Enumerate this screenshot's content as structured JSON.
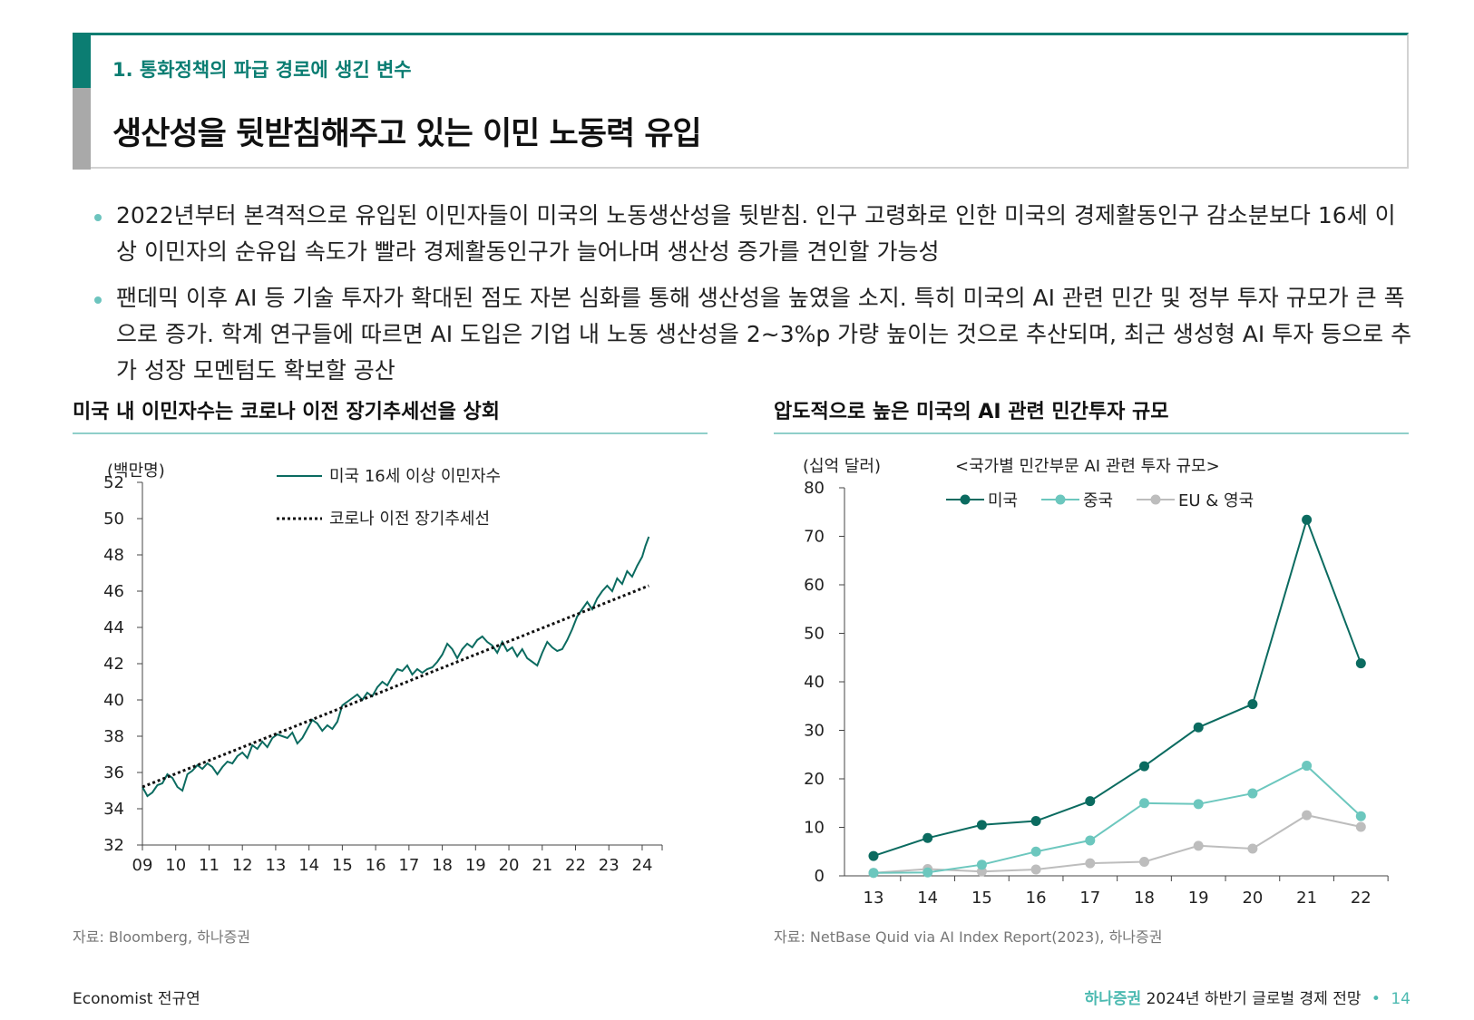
{
  "header": {
    "section": "1. 통화정책의 파급 경로에 생긴 변수",
    "title": "생산성을 뒷받침해주고 있는 이민 노동력 유입"
  },
  "bullets": [
    "2022년부터 본격적으로 유입된 이민자들이 미국의 노동생산성을 뒷받침. 인구 고령화로 인한 미국의 경제활동인구 감소분보다 16세 이상 이민자의 순유입 속도가 빨라 경제활동인구가 늘어나며 생산성 증가를 견인할 가능성",
    "팬데믹 이후 AI 등 기술 투자가 확대된 점도 자본 심화를 통해 생산성을 높였을 소지. 특히 미국의 AI 관련 민간 및 정부 투자 규모가 큰 폭으로 증가. 학계 연구들에 따르면 AI 도입은 기업 내 노동 생산성을 2~3%p 가량 높이는 것으로 추산되며, 최근 생성형 AI 투자 등으로 추가 성장 모멘텀도 확보할 공산"
  ],
  "colors": {
    "teal_dark": "#0b6b60",
    "teal_light": "#6cc7be",
    "gray": "#bdbdbd",
    "accent": "#0b7d72"
  },
  "chart_data": [
    {
      "type": "line",
      "title": "미국 내 이민자수는 코로나 이전 장기추세선을 상회",
      "unit_label": "(백만명)",
      "ylim": [
        32,
        52
      ],
      "yticks": [
        "32",
        "34",
        "36",
        "38",
        "40",
        "42",
        "44",
        "46",
        "48",
        "50",
        "52"
      ],
      "xlim": [
        2009,
        2024.6
      ],
      "xticks": [
        "09",
        "10",
        "11",
        "12",
        "13",
        "14",
        "15",
        "16",
        "17",
        "18",
        "19",
        "20",
        "21",
        "22",
        "23",
        "24"
      ],
      "series": [
        {
          "name": "미국 16세 이상 이민자수",
          "style": "solid",
          "points": [
            [
              2009.0,
              35.2
            ],
            [
              2009.15,
              34.7
            ],
            [
              2009.3,
              34.9
            ],
            [
              2009.45,
              35.3
            ],
            [
              2009.6,
              35.4
            ],
            [
              2009.75,
              35.9
            ],
            [
              2009.9,
              35.7
            ],
            [
              2010.05,
              35.2
            ],
            [
              2010.2,
              35.0
            ],
            [
              2010.35,
              35.9
            ],
            [
              2010.5,
              36.1
            ],
            [
              2010.65,
              36.4
            ],
            [
              2010.8,
              36.2
            ],
            [
              2010.95,
              36.5
            ],
            [
              2011.1,
              36.3
            ],
            [
              2011.25,
              35.9
            ],
            [
              2011.4,
              36.3
            ],
            [
              2011.55,
              36.6
            ],
            [
              2011.7,
              36.5
            ],
            [
              2011.85,
              36.9
            ],
            [
              2012.0,
              37.1
            ],
            [
              2012.15,
              36.8
            ],
            [
              2012.3,
              37.5
            ],
            [
              2012.45,
              37.3
            ],
            [
              2012.6,
              37.7
            ],
            [
              2012.75,
              37.4
            ],
            [
              2012.9,
              37.9
            ],
            [
              2013.05,
              38.1
            ],
            [
              2013.2,
              38.0
            ],
            [
              2013.35,
              37.9
            ],
            [
              2013.5,
              38.2
            ],
            [
              2013.65,
              37.6
            ],
            [
              2013.8,
              37.9
            ],
            [
              2013.95,
              38.4
            ],
            [
              2014.1,
              38.9
            ],
            [
              2014.25,
              38.7
            ],
            [
              2014.4,
              38.3
            ],
            [
              2014.55,
              38.6
            ],
            [
              2014.7,
              38.4
            ],
            [
              2014.85,
              38.8
            ],
            [
              2015.0,
              39.7
            ],
            [
              2015.15,
              39.9
            ],
            [
              2015.3,
              40.1
            ],
            [
              2015.45,
              40.3
            ],
            [
              2015.6,
              40.0
            ],
            [
              2015.75,
              40.4
            ],
            [
              2015.9,
              40.2
            ],
            [
              2016.05,
              40.7
            ],
            [
              2016.2,
              41.0
            ],
            [
              2016.35,
              40.8
            ],
            [
              2016.5,
              41.3
            ],
            [
              2016.65,
              41.7
            ],
            [
              2016.8,
              41.6
            ],
            [
              2016.95,
              41.9
            ],
            [
              2017.1,
              41.4
            ],
            [
              2017.25,
              41.7
            ],
            [
              2017.4,
              41.5
            ],
            [
              2017.55,
              41.7
            ],
            [
              2017.7,
              41.8
            ],
            [
              2017.85,
              42.1
            ],
            [
              2018.0,
              42.5
            ],
            [
              2018.15,
              43.1
            ],
            [
              2018.3,
              42.8
            ],
            [
              2018.45,
              42.3
            ],
            [
              2018.6,
              42.8
            ],
            [
              2018.75,
              43.1
            ],
            [
              2018.9,
              42.9
            ],
            [
              2019.05,
              43.3
            ],
            [
              2019.2,
              43.5
            ],
            [
              2019.35,
              43.2
            ],
            [
              2019.5,
              43.0
            ],
            [
              2019.65,
              42.6
            ],
            [
              2019.8,
              43.2
            ],
            [
              2019.95,
              42.7
            ],
            [
              2020.1,
              42.9
            ],
            [
              2020.25,
              42.4
            ],
            [
              2020.4,
              42.8
            ],
            [
              2020.55,
              42.3
            ],
            [
              2020.7,
              42.1
            ],
            [
              2020.85,
              41.9
            ],
            [
              2021.0,
              42.6
            ],
            [
              2021.15,
              43.2
            ],
            [
              2021.3,
              42.9
            ],
            [
              2021.45,
              42.7
            ],
            [
              2021.6,
              42.8
            ],
            [
              2021.75,
              43.3
            ],
            [
              2021.9,
              43.9
            ],
            [
              2022.05,
              44.6
            ],
            [
              2022.2,
              45.0
            ],
            [
              2022.35,
              45.4
            ],
            [
              2022.5,
              45.0
            ],
            [
              2022.65,
              45.6
            ],
            [
              2022.8,
              46.0
            ],
            [
              2022.95,
              46.3
            ],
            [
              2023.1,
              46.0
            ],
            [
              2023.25,
              46.7
            ],
            [
              2023.4,
              46.4
            ],
            [
              2023.55,
              47.1
            ],
            [
              2023.7,
              46.8
            ],
            [
              2023.85,
              47.4
            ],
            [
              2024.0,
              47.9
            ],
            [
              2024.1,
              48.5
            ],
            [
              2024.2,
              49.0
            ]
          ]
        },
        {
          "name": "코로나 이전 장기추세선",
          "style": "dotted",
          "points": [
            [
              2009.0,
              35.2
            ],
            [
              2024.2,
              46.3
            ]
          ]
        }
      ],
      "source": "자료: Bloomberg, 하나증권"
    },
    {
      "type": "line",
      "title": "압도적으로 높은 미국의 AI 관련 민간투자 규모",
      "unit_label": "(십억 달러)",
      "subtitle": "<국가별 민간부문 AI 관련 투자 규모>",
      "ylim": [
        0,
        80
      ],
      "yticks": [
        "0",
        "10",
        "20",
        "30",
        "40",
        "50",
        "60",
        "70",
        "80"
      ],
      "categories": [
        "13",
        "14",
        "15",
        "16",
        "17",
        "18",
        "19",
        "20",
        "21",
        "22"
      ],
      "series": [
        {
          "name": "미국",
          "color": "#0b6b60",
          "values": [
            4.1,
            7.8,
            10.5,
            11.3,
            15.4,
            22.6,
            30.6,
            35.4,
            73.4,
            43.8
          ]
        },
        {
          "name": "중국",
          "color": "#6cc7be",
          "values": [
            0.6,
            0.7,
            2.3,
            5.0,
            7.3,
            15.0,
            14.8,
            17.0,
            22.7,
            12.3
          ]
        },
        {
          "name": "EU & 영국",
          "color": "#bdbdbd",
          "values": [
            0.6,
            1.4,
            0.9,
            1.3,
            2.6,
            2.9,
            6.2,
            5.6,
            12.5,
            10.1
          ]
        }
      ],
      "source": "자료: NetBase Quid via AI Index Report(2023), 하나증권"
    }
  ],
  "footer": {
    "author": "Economist 전규연",
    "brand": "하나증권",
    "doc": "2024년 하반기 글로벌 경제 전망",
    "bullet": "•",
    "page": "14"
  }
}
